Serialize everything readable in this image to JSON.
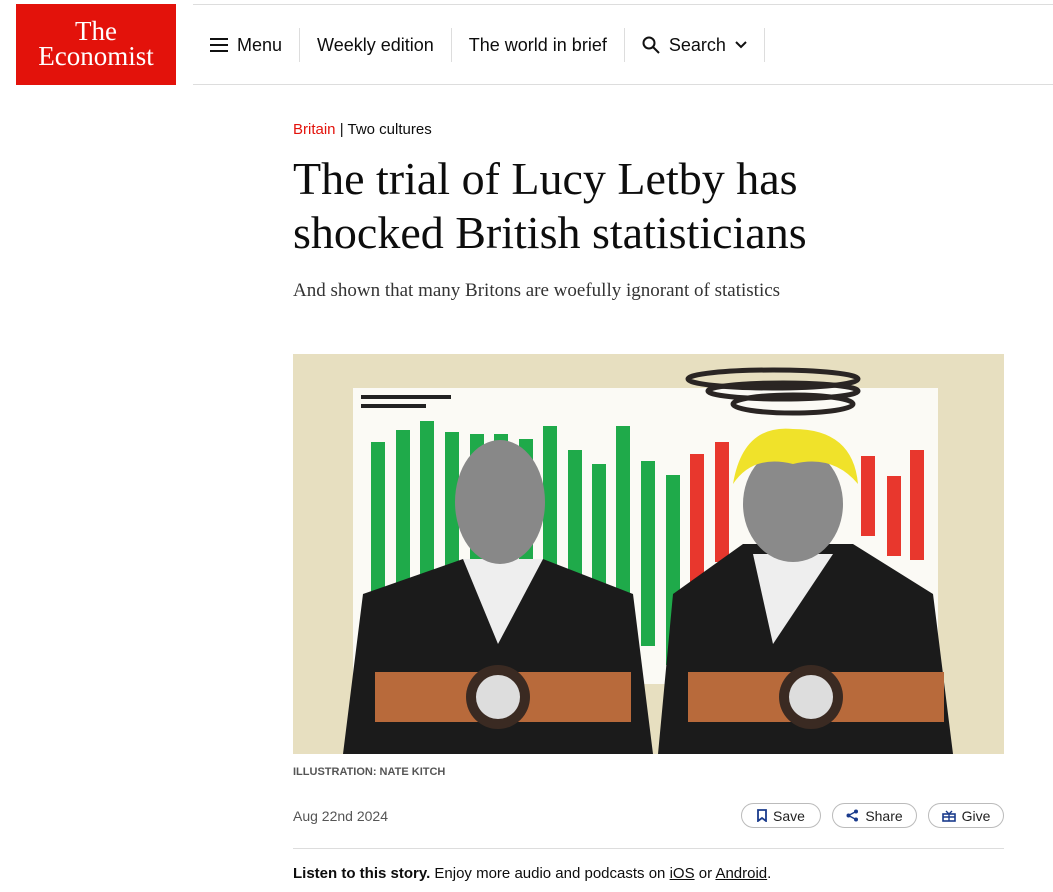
{
  "header": {
    "logo": {
      "line1": "The",
      "line2": "Economist"
    },
    "nav": [
      "Menu",
      "Weekly edition",
      "The world in brief",
      "Search"
    ]
  },
  "article": {
    "section": "Britain",
    "topic": "Two cultures",
    "title": "The trial of Lucy Letby has shocked British statisticians",
    "subtitle": "And shown that many Britons are woefully ignorant of statistics",
    "caption": "ILLUSTRATION: NATE KITCH",
    "date": "Aug 22nd 2024",
    "actions": [
      "Save",
      "Share",
      "Give"
    ],
    "listen": {
      "lead": "Listen to this story.",
      "text": "Enjoy more audio and podcasts on",
      "ios": "iOS",
      "or": "or",
      "android": "Android",
      "end": "."
    }
  }
}
